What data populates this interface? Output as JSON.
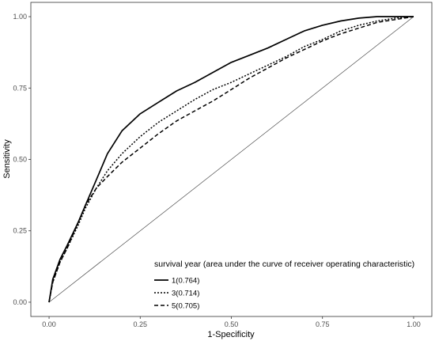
{
  "chart_data": {
    "type": "line",
    "xlabel": "1-Specificity",
    "ylabel": "Sensitivity",
    "xlim": [
      -0.05,
      1.05
    ],
    "ylim": [
      -0.05,
      1.05
    ],
    "x_ticks": [
      0.0,
      0.25,
      0.5,
      0.75,
      1.0
    ],
    "y_ticks": [
      0.0,
      0.25,
      0.5,
      0.75,
      1.0
    ],
    "x_tick_labels": [
      "0.00",
      "0.25",
      "0.50",
      "0.75",
      "1.00"
    ],
    "y_tick_labels": [
      "0.00",
      "0.25",
      "0.50",
      "0.75",
      "1.00"
    ],
    "grid": false,
    "legend": {
      "title": "survival year (area under the curve of receiver operating characteristic)",
      "placement": "bottom-right"
    },
    "reference_line": {
      "x": [
        0,
        1
      ],
      "y": [
        0,
        1
      ]
    },
    "series": [
      {
        "name": "1(0.764)",
        "line_style": "solid",
        "x": [
          0.0,
          0.01,
          0.03,
          0.05,
          0.08,
          0.1,
          0.13,
          0.16,
          0.2,
          0.25,
          0.3,
          0.35,
          0.4,
          0.45,
          0.5,
          0.55,
          0.6,
          0.65,
          0.7,
          0.75,
          0.8,
          0.85,
          0.9,
          0.95,
          1.0
        ],
        "y": [
          0.0,
          0.08,
          0.15,
          0.2,
          0.28,
          0.34,
          0.43,
          0.52,
          0.6,
          0.66,
          0.7,
          0.74,
          0.77,
          0.805,
          0.84,
          0.865,
          0.89,
          0.92,
          0.95,
          0.97,
          0.985,
          0.995,
          1.0,
          1.0,
          1.0
        ]
      },
      {
        "name": "3(0.714)",
        "line_style": "dotted",
        "x": [
          0.0,
          0.01,
          0.03,
          0.05,
          0.08,
          0.1,
          0.13,
          0.16,
          0.2,
          0.25,
          0.3,
          0.35,
          0.4,
          0.45,
          0.5,
          0.55,
          0.6,
          0.65,
          0.7,
          0.75,
          0.8,
          0.85,
          0.9,
          0.95,
          1.0
        ],
        "y": [
          0.0,
          0.07,
          0.14,
          0.19,
          0.27,
          0.33,
          0.4,
          0.46,
          0.52,
          0.58,
          0.63,
          0.67,
          0.71,
          0.745,
          0.77,
          0.8,
          0.83,
          0.86,
          0.895,
          0.92,
          0.95,
          0.97,
          0.985,
          0.995,
          1.0
        ]
      },
      {
        "name": "5(0.705)",
        "line_style": "dashed",
        "x": [
          0.0,
          0.01,
          0.03,
          0.05,
          0.08,
          0.1,
          0.13,
          0.16,
          0.2,
          0.25,
          0.3,
          0.35,
          0.4,
          0.45,
          0.5,
          0.55,
          0.6,
          0.65,
          0.7,
          0.75,
          0.8,
          0.85,
          0.9,
          0.95,
          1.0
        ],
        "y": [
          0.0,
          0.07,
          0.14,
          0.19,
          0.28,
          0.34,
          0.4,
          0.44,
          0.49,
          0.54,
          0.59,
          0.635,
          0.67,
          0.705,
          0.745,
          0.785,
          0.82,
          0.855,
          0.885,
          0.915,
          0.94,
          0.96,
          0.98,
          0.99,
          1.0
        ]
      }
    ]
  }
}
